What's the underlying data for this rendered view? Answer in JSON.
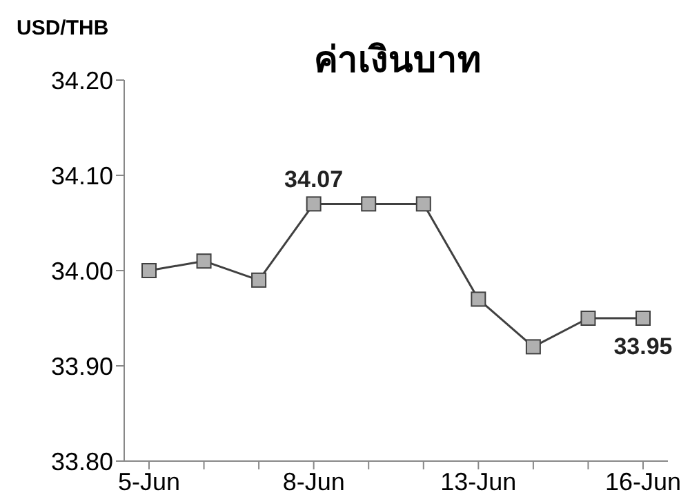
{
  "chart_data": {
    "type": "line",
    "title": "ค่าเงินบาท",
    "ylabel": "USD/THB",
    "categories": [
      "5-Jun",
      null,
      null,
      "8-Jun",
      null,
      null,
      "13-Jun",
      null,
      null,
      "16-Jun"
    ],
    "values": [
      34.0,
      34.01,
      33.99,
      34.07,
      34.07,
      34.07,
      33.97,
      33.92,
      33.95,
      33.95
    ],
    "value_labels": [
      null,
      null,
      null,
      "34.07",
      null,
      null,
      null,
      null,
      null,
      "33.95"
    ],
    "color": "#404040",
    "marker": "square",
    "ylim": [
      33.8,
      34.2
    ],
    "yticks": [
      {
        "value": 33.8,
        "label": "33.80"
      },
      {
        "value": 33.9,
        "label": "33.90"
      },
      {
        "value": 34.0,
        "label": "34.00"
      },
      {
        "value": 34.1,
        "label": "34.10"
      },
      {
        "value": 34.2,
        "label": "34.20"
      }
    ],
    "grid": false,
    "legend": false
  }
}
